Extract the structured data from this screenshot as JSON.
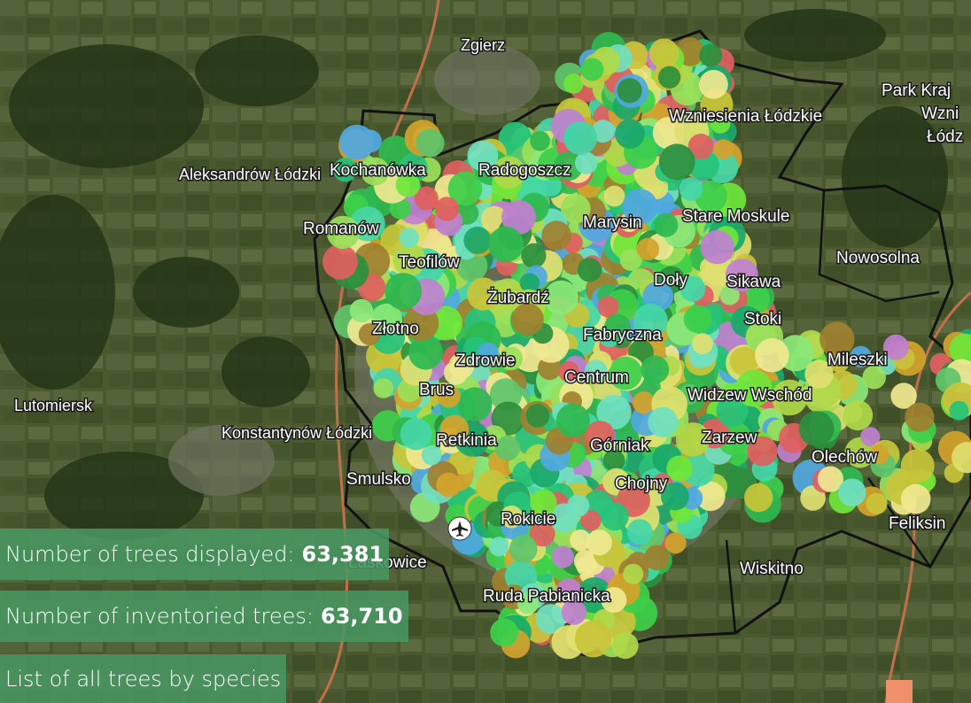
{
  "map": {
    "places": [
      {
        "id": "zgierz",
        "label": "Zgierz"
      },
      {
        "id": "wzniesienia",
        "label": "Wzniesienia Łódzkie"
      },
      {
        "id": "park",
        "label": "Park Kraj"
      },
      {
        "id": "park2",
        "label": "Wzni"
      },
      {
        "id": "park3",
        "label": "Łódz"
      },
      {
        "id": "aleksandrow",
        "label": "Aleksandrów Łódzki"
      },
      {
        "id": "kochanowka",
        "label": "Kochanówka"
      },
      {
        "id": "radogoszcz",
        "label": "Radogoszcz"
      },
      {
        "id": "romanow",
        "label": "Romanów"
      },
      {
        "id": "marysin",
        "label": "Marysin"
      },
      {
        "id": "stare",
        "label": "Stare Moskule"
      },
      {
        "id": "nowosolna",
        "label": "Nowosolna"
      },
      {
        "id": "teofilow",
        "label": "Teofilów"
      },
      {
        "id": "doly",
        "label": "Doły"
      },
      {
        "id": "sikawa",
        "label": "Sikawa"
      },
      {
        "id": "zubardz",
        "label": "Żubardź"
      },
      {
        "id": "stoki",
        "label": "Stoki"
      },
      {
        "id": "zlotno",
        "label": "Złotno"
      },
      {
        "id": "fabryczna",
        "label": "Fabryczna"
      },
      {
        "id": "mileszki",
        "label": "Mileszki"
      },
      {
        "id": "zdrowie",
        "label": "Zdrowie"
      },
      {
        "id": "centrum",
        "label": "Centrum"
      },
      {
        "id": "lutomiersk",
        "label": "Lutomiersk"
      },
      {
        "id": "brus",
        "label": "Brus"
      },
      {
        "id": "widzew",
        "label": "Widzew Wschód"
      },
      {
        "id": "konstantynow",
        "label": "Konstantynów Łódzki"
      },
      {
        "id": "retkinia",
        "label": "Retkinia"
      },
      {
        "id": "gorniak",
        "label": "Górniak"
      },
      {
        "id": "zarzew",
        "label": "Zarzew"
      },
      {
        "id": "olechow",
        "label": "Olechów"
      },
      {
        "id": "smulsko",
        "label": "Smulsko"
      },
      {
        "id": "chojny",
        "label": "Chojny"
      },
      {
        "id": "rokicie",
        "label": "Rokicie"
      },
      {
        "id": "feliksin",
        "label": "Feliksin"
      },
      {
        "id": "lublinek",
        "label": "Łaskowice"
      },
      {
        "id": "wiskitno",
        "label": "Wiskitno"
      },
      {
        "id": "ruda",
        "label": "Ruda Pabianicka"
      }
    ],
    "icons": {
      "airport": "airplane-icon"
    }
  },
  "stats": {
    "displayed_label": "Number of trees displayed:",
    "displayed_value": "63,381",
    "inventoried_label": "Number of inventoried trees:",
    "inventoried_value": "63,710",
    "list_link": "List of all trees by species"
  }
}
